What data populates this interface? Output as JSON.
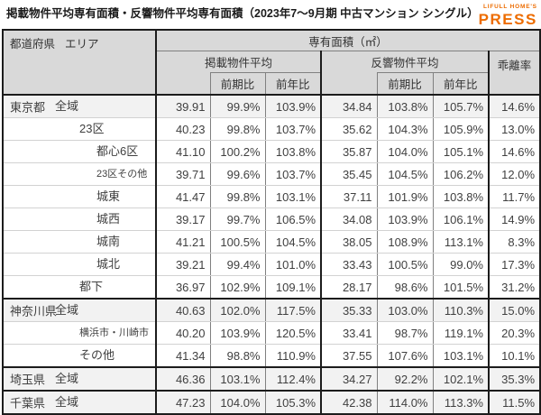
{
  "title": "掲載物件平均専有面積・反響物件平均専有面積（2023年7～9月期 中古マンション シングル）",
  "logo": {
    "top": "LIFULL HOME'S",
    "bottom": "PRESS",
    "color": "#ED6C00"
  },
  "header": {
    "prefecture": "都道府県",
    "area": "エリア",
    "unit_title": "専有面積（㎡）",
    "listed_group": "掲載物件平均",
    "response_group": "反響物件平均",
    "deviation_rate": "乖離率",
    "prev_period": "前期比",
    "prev_year": "前年比"
  },
  "colors": {
    "logo_orange": "#ED6C00",
    "header_bg": "#D9D9D9",
    "highlight_row_bg": "#F2F2F2",
    "thick_border": "#1C1C1C"
  },
  "chart_data": {
    "type": "table",
    "title": "掲載物件平均専有面積・反響物件平均専有面積（2023年7～9月期 中古マンション シングル）",
    "columns": [
      "都道府県/エリア",
      "掲載物件平均",
      "掲載物件平均 前期比",
      "掲載物件平均 前年比",
      "反響物件平均",
      "反響物件平均 前期比",
      "反響物件平均 前年比",
      "乖離率"
    ],
    "rows": [
      {
        "pref": "東京都",
        "area": "全域",
        "indent": 1,
        "small": false,
        "hl": true,
        "grp": false,
        "v": [
          "39.91",
          "99.9%",
          "103.9%",
          "34.84",
          "103.8%",
          "105.7%",
          "14.6%"
        ]
      },
      {
        "pref": "",
        "area": "23区",
        "indent": 2,
        "small": false,
        "hl": false,
        "grp": false,
        "v": [
          "40.23",
          "99.8%",
          "103.7%",
          "35.62",
          "104.3%",
          "105.9%",
          "13.0%"
        ]
      },
      {
        "pref": "",
        "area": "都心6区",
        "indent": 3,
        "small": false,
        "hl": false,
        "grp": false,
        "v": [
          "41.10",
          "100.2%",
          "103.8%",
          "35.87",
          "104.0%",
          "105.1%",
          "14.6%"
        ]
      },
      {
        "pref": "",
        "area": "23区その他",
        "indent": 3,
        "small": true,
        "hl": false,
        "grp": false,
        "v": [
          "39.71",
          "99.6%",
          "103.7%",
          "35.45",
          "104.5%",
          "106.2%",
          "12.0%"
        ]
      },
      {
        "pref": "",
        "area": "城東",
        "indent": 3,
        "small": false,
        "hl": false,
        "grp": false,
        "v": [
          "41.47",
          "99.8%",
          "103.1%",
          "37.11",
          "101.9%",
          "103.8%",
          "11.7%"
        ]
      },
      {
        "pref": "",
        "area": "城西",
        "indent": 3,
        "small": false,
        "hl": false,
        "grp": false,
        "v": [
          "39.17",
          "99.7%",
          "106.5%",
          "34.08",
          "103.9%",
          "106.1%",
          "14.9%"
        ]
      },
      {
        "pref": "",
        "area": "城南",
        "indent": 3,
        "small": false,
        "hl": false,
        "grp": false,
        "v": [
          "41.21",
          "100.5%",
          "104.5%",
          "38.05",
          "108.9%",
          "113.1%",
          "8.3%"
        ]
      },
      {
        "pref": "",
        "area": "城北",
        "indent": 3,
        "small": false,
        "hl": false,
        "grp": false,
        "v": [
          "39.21",
          "99.4%",
          "101.0%",
          "33.43",
          "100.5%",
          "99.0%",
          "17.3%"
        ]
      },
      {
        "pref": "",
        "area": "都下",
        "indent": 2,
        "small": false,
        "hl": false,
        "grp": false,
        "v": [
          "36.97",
          "102.9%",
          "109.1%",
          "28.17",
          "98.6%",
          "101.5%",
          "31.2%"
        ]
      },
      {
        "pref": "神奈川県",
        "area": "全域",
        "indent": 1,
        "small": false,
        "hl": true,
        "grp": true,
        "v": [
          "40.63",
          "102.0%",
          "117.5%",
          "35.33",
          "103.0%",
          "110.3%",
          "15.0%"
        ]
      },
      {
        "pref": "",
        "area": "横浜市・川崎市",
        "indent": 2,
        "small": true,
        "hl": false,
        "grp": false,
        "v": [
          "40.20",
          "103.9%",
          "120.5%",
          "33.41",
          "98.7%",
          "119.1%",
          "20.3%"
        ]
      },
      {
        "pref": "",
        "area": "その他",
        "indent": 2,
        "small": false,
        "hl": false,
        "grp": false,
        "v": [
          "41.34",
          "98.8%",
          "110.9%",
          "37.55",
          "107.6%",
          "103.1%",
          "10.1%"
        ]
      },
      {
        "pref": "埼玉県",
        "area": "全域",
        "indent": 1,
        "small": false,
        "hl": true,
        "grp": true,
        "v": [
          "46.36",
          "103.1%",
          "112.4%",
          "34.27",
          "92.2%",
          "102.1%",
          "35.3%"
        ]
      },
      {
        "pref": "千葉県",
        "area": "全域",
        "indent": 1,
        "small": false,
        "hl": true,
        "grp": true,
        "v": [
          "47.23",
          "104.0%",
          "105.3%",
          "42.38",
          "114.0%",
          "113.3%",
          "11.5%"
        ]
      }
    ]
  }
}
